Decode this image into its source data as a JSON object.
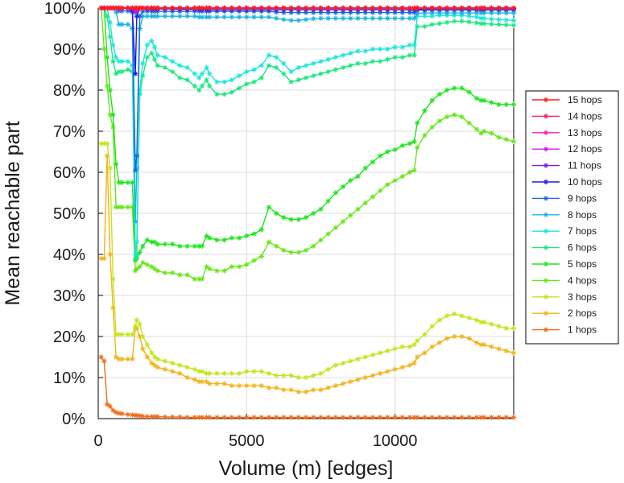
{
  "chart_data": {
    "type": "line",
    "title": "",
    "xlabel": "Volume (m) [edges]",
    "ylabel": "Mean reachable part",
    "xlim": [
      0,
      14000
    ],
    "ylim": [
      0,
      100
    ],
    "xticks": [
      0,
      5000,
      10000
    ],
    "xtick_labels": [
      "0",
      "5000",
      "10000"
    ],
    "yticks": [
      0,
      10,
      20,
      30,
      40,
      50,
      60,
      70,
      80,
      90,
      100
    ],
    "ytick_labels": [
      "0%",
      "10%",
      "20%",
      "30%",
      "40%",
      "50%",
      "60%",
      "70%",
      "80%",
      "90%",
      "100%"
    ],
    "grid": true,
    "legend_position": "right",
    "x": [
      100,
      200,
      300,
      400,
      500,
      600,
      700,
      800,
      1000,
      1150,
      1250,
      1300,
      1400,
      1500,
      1650,
      1800,
      1900,
      2000,
      2250,
      2500,
      2750,
      3000,
      3250,
      3400,
      3500,
      3650,
      3750,
      4000,
      4250,
      4500,
      4750,
      5000,
      5250,
      5500,
      5750,
      6000,
      6250,
      6500,
      6750,
      7000,
      7250,
      7500,
      7750,
      8000,
      8250,
      8500,
      8750,
      9000,
      9250,
      9500,
      9750,
      10000,
      10250,
      10500,
      10650,
      10750,
      11000,
      11250,
      11500,
      11750,
      12000,
      12250,
      12500,
      12750,
      12900,
      13000,
      13250,
      13500,
      13750,
      14000
    ],
    "series": [
      {
        "name": "15 hops",
        "color": "#ff1a1a",
        "values": [
          100,
          100,
          100,
          100,
          100,
          100,
          100,
          100,
          100,
          100,
          100,
          100,
          100,
          100,
          100,
          100,
          100,
          100,
          100,
          100,
          100,
          100,
          100,
          100,
          100,
          100,
          100,
          100,
          100,
          100,
          100,
          100,
          100,
          100,
          100,
          100,
          100,
          100,
          100,
          100,
          100,
          100,
          100,
          100,
          100,
          100,
          100,
          100,
          100,
          100,
          100,
          100,
          100,
          100,
          100,
          100,
          100,
          100,
          100,
          100,
          100,
          100,
          100,
          100,
          100,
          100,
          100,
          100,
          100,
          100
        ]
      },
      {
        "name": "14 hops",
        "color": "#ff1a66",
        "values": [
          100,
          100,
          100,
          100,
          100,
          100,
          100,
          100,
          100,
          100,
          100,
          100,
          100,
          100,
          100,
          100,
          100,
          100,
          100,
          100,
          100,
          100,
          100,
          100,
          100,
          100,
          100,
          100,
          100,
          100,
          100,
          100,
          100,
          100,
          100,
          100,
          100,
          100,
          100,
          100,
          100,
          100,
          100,
          100,
          100,
          100,
          100,
          100,
          100,
          100,
          100,
          100,
          100,
          100,
          100,
          100,
          100,
          100,
          100,
          100,
          100,
          100,
          100,
          100,
          100,
          100,
          100,
          100,
          100,
          100
        ]
      },
      {
        "name": "13 hops",
        "color": "#ff1ab3",
        "values": [
          100,
          100,
          100,
          100,
          100,
          100,
          100,
          100,
          100,
          100,
          100,
          100,
          100,
          100,
          100,
          100,
          100,
          100,
          100,
          100,
          100,
          100,
          100,
          100,
          100,
          100,
          100,
          100,
          100,
          100,
          100,
          100,
          100,
          100,
          100,
          100,
          100,
          100,
          100,
          100,
          100,
          100,
          100,
          100,
          100,
          100,
          100,
          100,
          100,
          100,
          100,
          100,
          100,
          100,
          100,
          100,
          100,
          100,
          100,
          100,
          100,
          100,
          100,
          100,
          100,
          100,
          100,
          100,
          100,
          100
        ]
      },
      {
        "name": "12 hops",
        "color": "#d11ae6",
        "values": [
          100,
          100,
          100,
          100,
          100,
          100,
          100,
          100,
          100,
          100,
          99.5,
          99.6,
          100,
          100,
          100,
          100,
          100,
          100,
          100,
          100,
          100,
          100,
          100,
          100,
          100,
          100,
          100,
          100,
          100,
          100,
          100,
          100,
          100,
          100,
          100,
          100,
          100,
          100,
          100,
          100,
          100,
          100,
          100,
          100,
          100,
          100,
          100,
          100,
          100,
          100,
          100,
          100,
          100,
          100,
          100,
          100,
          100,
          100,
          100,
          100,
          100,
          100,
          100,
          100,
          100,
          100,
          100,
          100,
          100,
          100
        ]
      },
      {
        "name": "11 hops",
        "color": "#7a1ae6",
        "values": [
          100,
          100,
          100,
          100,
          100,
          100,
          100,
          100,
          100,
          100,
          99,
          99.3,
          100,
          100,
          100,
          100,
          100,
          100,
          100,
          100,
          100,
          100,
          100,
          100,
          100,
          100,
          100,
          100,
          100,
          100,
          100,
          100,
          100,
          100,
          100,
          100,
          100,
          100,
          100,
          100,
          100,
          100,
          100,
          100,
          100,
          100,
          100,
          100,
          100,
          100,
          100,
          100,
          100,
          100,
          100,
          100,
          100,
          100,
          100,
          100,
          100,
          100,
          100,
          100,
          100,
          100,
          100,
          100,
          100,
          100
        ]
      },
      {
        "name": "10 hops",
        "color": "#1a1ae6",
        "values": [
          100,
          100,
          100,
          100,
          100,
          100,
          100,
          100,
          100,
          99.5,
          84,
          98,
          100,
          100,
          99.8,
          99.8,
          99.8,
          99.8,
          99.8,
          99.8,
          99.7,
          99.7,
          99.7,
          99.7,
          99.7,
          99.6,
          99.6,
          99.6,
          99.6,
          99.6,
          99.6,
          99.6,
          99.6,
          99.6,
          99.6,
          99.6,
          99.6,
          99.6,
          99.6,
          99.6,
          99.6,
          99.6,
          99.6,
          99.6,
          99.6,
          99.6,
          99.6,
          99.6,
          99.6,
          99.6,
          99.6,
          99.6,
          99.6,
          99.6,
          99.6,
          99.7,
          99.7,
          99.8,
          99.8,
          99.8,
          99.8,
          99.8,
          99.8,
          99.8,
          99.8,
          99.8,
          99.8,
          99.8,
          99.8,
          99.8
        ]
      },
      {
        "name": "9 hops",
        "color": "#1a66e6",
        "values": [
          100,
          100,
          100,
          100,
          100,
          100,
          99.3,
          99.3,
          99.3,
          99,
          60.5,
          64,
          98,
          99.2,
          99.2,
          99.2,
          99.2,
          99.2,
          99.2,
          99.2,
          99.2,
          99.2,
          99.2,
          99.2,
          99.2,
          99.2,
          99.2,
          99.2,
          99.2,
          99.2,
          99.2,
          99.2,
          99.2,
          99.2,
          99.2,
          99.0,
          98.9,
          98.9,
          98.9,
          98.9,
          98.9,
          98.9,
          98.9,
          98.9,
          98.9,
          98.9,
          98.9,
          98.9,
          98.9,
          98.9,
          98.9,
          98.9,
          98.9,
          98.9,
          98.9,
          99.5,
          99.5,
          99.5,
          99.5,
          99.5,
          99.5,
          99.5,
          99.5,
          99.5,
          99.5,
          99.5,
          99.5,
          99.5,
          99.5,
          99.5
        ]
      },
      {
        "name": "8 hops",
        "color": "#1ab3e6",
        "values": [
          100,
          100,
          100,
          100,
          100,
          99,
          96,
          96,
          96,
          95,
          48,
          61,
          95,
          98,
          98,
          98,
          98,
          98,
          98,
          98,
          98,
          98,
          98,
          97.8,
          97.8,
          97.8,
          97.8,
          97.8,
          97.8,
          97.8,
          97.8,
          97.8,
          97.8,
          97.8,
          97.8,
          97.5,
          97.2,
          97.0,
          97.0,
          97.2,
          97.4,
          97.5,
          97.5,
          97.5,
          97.5,
          97.5,
          97.5,
          97.5,
          97.5,
          97.5,
          97.5,
          97.5,
          97.5,
          97.5,
          97.5,
          98.7,
          98.8,
          98.8,
          98.8,
          98.8,
          98.8,
          98.8,
          98.8,
          98.8,
          98.8,
          98.8,
          98.8,
          98.8,
          98.8,
          98.8
        ]
      },
      {
        "name": "7 hops",
        "color": "#1ae6d9",
        "values": [
          100,
          100,
          100,
          96.5,
          91,
          88,
          87,
          87,
          87,
          86,
          40,
          43,
          80,
          86.5,
          91,
          92,
          90.5,
          88.5,
          88,
          87,
          86,
          85.5,
          84,
          83,
          84,
          85.5,
          84,
          82,
          82,
          82.5,
          83.5,
          84.5,
          85,
          86,
          88.5,
          88,
          86.5,
          84.5,
          85.5,
          86,
          86.5,
          87,
          87.5,
          88,
          88.5,
          89,
          89.5,
          89.5,
          90,
          90,
          90,
          90.5,
          90.5,
          91,
          91,
          98,
          98,
          98,
          98.2,
          98.2,
          98.2,
          98.2,
          98,
          97.8,
          97.5,
          97.5,
          97.3,
          97.2,
          97.1,
          97.0
        ]
      },
      {
        "name": "6 hops",
        "color": "#1ae680",
        "values": [
          100,
          100,
          98,
          93,
          87,
          84,
          84.5,
          84.5,
          85,
          84.5,
          39,
          40,
          79,
          83.5,
          88,
          89,
          87.5,
          86,
          85.5,
          84.5,
          83,
          82.5,
          81,
          80,
          81,
          82.5,
          81,
          79,
          79,
          79.5,
          80.5,
          81.5,
          82,
          83,
          86,
          85.5,
          84,
          82,
          82.5,
          83,
          83.5,
          84,
          84.5,
          85,
          85.5,
          86,
          86.5,
          86.5,
          87,
          87,
          87.5,
          88,
          88,
          88.5,
          88.5,
          95.5,
          95.5,
          96,
          96.2,
          96.5,
          96.8,
          96.8,
          96.6,
          96.4,
          96.2,
          96.2,
          96.1,
          96,
          95.9,
          95.8
        ]
      },
      {
        "name": "5 hops",
        "color": "#1ae61a",
        "values": [
          100,
          100,
          88,
          80,
          74,
          62,
          57.5,
          57.5,
          57.5,
          57.5,
          38.5,
          39,
          40.5,
          42,
          43.5,
          43,
          43,
          42.5,
          42.5,
          42.5,
          42,
          42,
          42,
          42,
          42,
          44.5,
          44,
          43.5,
          43.5,
          44,
          44,
          44.5,
          45,
          46,
          51.5,
          50,
          49,
          48.5,
          48.5,
          49,
          50,
          51,
          53,
          55,
          56.5,
          58,
          59,
          61,
          62.5,
          64,
          65,
          65.5,
          66.5,
          67,
          67.5,
          72,
          75,
          77.5,
          79,
          80,
          80.5,
          80.5,
          79.5,
          78,
          77.5,
          77.5,
          77,
          76.5,
          76.5,
          76.5
        ]
      },
      {
        "name": "4 hops",
        "color": "#66e61a",
        "values": [
          100,
          90,
          81,
          74,
          71,
          51.5,
          51.5,
          51.5,
          51.5,
          51.5,
          36,
          36.5,
          37,
          38,
          37.5,
          37,
          36.5,
          36,
          35.5,
          35.5,
          35,
          35,
          34,
          34,
          34,
          37,
          36.5,
          36,
          36,
          37,
          37,
          37.5,
          38.5,
          39.5,
          43,
          42,
          41,
          40.5,
          40.5,
          41,
          42,
          43.5,
          45,
          46.5,
          48,
          49.5,
          51,
          52.5,
          54,
          55.5,
          57,
          58,
          59,
          60,
          60.5,
          66,
          69,
          71,
          72.5,
          73.5,
          74,
          73.5,
          72,
          70.5,
          69.5,
          70,
          69.5,
          68.5,
          68,
          67.5
        ]
      },
      {
        "name": "3 hops",
        "color": "#c2e61a",
        "values": [
          67,
          67,
          67,
          61,
          34,
          20.5,
          20.5,
          20.5,
          20.5,
          20.5,
          22.5,
          24,
          23,
          20,
          18,
          16,
          15,
          14.5,
          14,
          13.5,
          13,
          12.5,
          12,
          11.5,
          11.5,
          11,
          11,
          11,
          11,
          11,
          11,
          11.5,
          11.5,
          11.5,
          11,
          10.5,
          10.5,
          10.5,
          10,
          10,
          10.5,
          11,
          12,
          13,
          13.5,
          14,
          14.5,
          15,
          15.5,
          16,
          16.5,
          17,
          17.5,
          17.5,
          18,
          19,
          20.5,
          22.5,
          24,
          25,
          25.5,
          25,
          24.5,
          24,
          23.5,
          23.5,
          23,
          22.5,
          22,
          22
        ]
      },
      {
        "name": "2 hops",
        "color": "#f2b31a",
        "values": [
          39,
          39,
          64,
          40,
          27,
          15,
          14.5,
          14.5,
          14.5,
          14.5,
          22,
          22,
          20,
          17,
          15,
          13.5,
          13,
          12.5,
          12,
          11.5,
          11,
          10,
          9.5,
          9,
          9,
          9,
          8.5,
          8.5,
          8.5,
          8,
          8,
          8,
          8,
          8,
          7.5,
          7.5,
          7,
          7,
          6.5,
          6.5,
          7,
          7,
          7.5,
          8,
          8.5,
          9,
          9.5,
          10,
          10.5,
          11,
          11.5,
          12,
          12.5,
          13,
          13.5,
          15,
          16,
          17.5,
          18.5,
          19.5,
          20,
          20,
          19.5,
          18.5,
          18,
          18,
          17.5,
          17,
          16.5,
          16
        ]
      },
      {
        "name": "1 hops",
        "color": "#f26b1a",
        "values": [
          15,
          14,
          3.5,
          3,
          2,
          1.5,
          1.3,
          1.2,
          1,
          0.9,
          0.8,
          0.8,
          0.7,
          0.6,
          0.5,
          0.5,
          0.5,
          0.5,
          0.4,
          0.4,
          0.4,
          0.3,
          0.3,
          0.3,
          0.3,
          0.3,
          0.3,
          0.3,
          0.3,
          0.3,
          0.3,
          0.3,
          0.3,
          0.3,
          0.3,
          0.3,
          0.3,
          0.3,
          0.3,
          0.3,
          0.3,
          0.3,
          0.3,
          0.3,
          0.3,
          0.3,
          0.3,
          0.3,
          0.3,
          0.3,
          0.3,
          0.3,
          0.3,
          0.3,
          0.3,
          0.3,
          0.3,
          0.3,
          0.3,
          0.3,
          0.3,
          0.3,
          0.3,
          0.3,
          0.3,
          0.3,
          0.3,
          0.3,
          0.3,
          0.3
        ]
      }
    ]
  }
}
